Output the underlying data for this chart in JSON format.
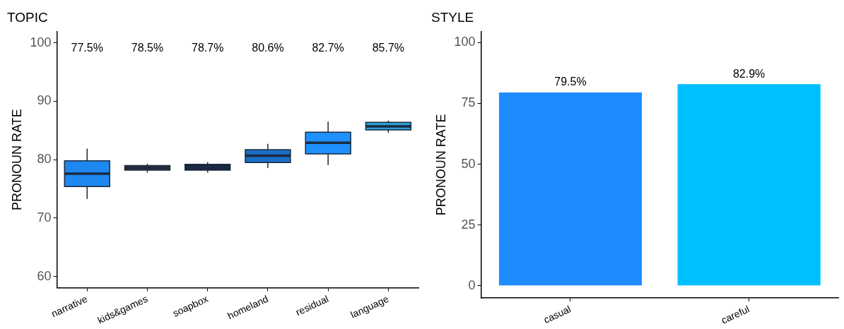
{
  "chart_data": [
    {
      "type": "box",
      "title": "TOPIC",
      "ylabel": "PRONOUN RATE",
      "categories": [
        "narrative",
        "kids&games",
        "soapbox",
        "homeland",
        "residual",
        "language"
      ],
      "boxes": [
        {
          "low": 73.3,
          "q1": 75.4,
          "median": 77.6,
          "q3": 79.8,
          "high": 81.9
        },
        {
          "low": 77.8,
          "q1": 78.2,
          "median": 78.6,
          "q3": 79.0,
          "high": 79.3
        },
        {
          "low": 77.8,
          "q1": 78.2,
          "median": 78.7,
          "q3": 79.2,
          "high": 79.6
        },
        {
          "low": 78.6,
          "q1": 79.5,
          "median": 80.7,
          "q3": 81.7,
          "high": 82.7
        },
        {
          "low": 79.1,
          "q1": 81.0,
          "median": 82.9,
          "q3": 84.7,
          "high": 86.5
        },
        {
          "low": 84.6,
          "q1": 85.1,
          "median": 85.7,
          "q3": 86.4,
          "high": 86.7
        }
      ],
      "colors": [
        "#1e88f0",
        "#333333",
        "#1f2240",
        "#1a6fc4",
        "#1e90ff",
        "#2a9fd6"
      ],
      "value_labels": [
        "77.5%",
        "78.5%",
        "78.7%",
        "80.6%",
        "82.7%",
        "85.7%"
      ],
      "ylim": [
        58.1,
        101.9
      ],
      "yticks": [
        60,
        70,
        80,
        90,
        100
      ],
      "grid": false,
      "legend": false
    },
    {
      "type": "bar",
      "title": "STYLE",
      "ylabel": "PRONOUN RATE",
      "categories": [
        "casual",
        "careful"
      ],
      "values": [
        79.5,
        82.9
      ],
      "colors": [
        "#1e8cff",
        "#00bfff"
      ],
      "value_labels": [
        "79.5%",
        "82.9%"
      ],
      "ylim": [
        -5,
        104.5
      ],
      "yticks": [
        0,
        25,
        50,
        75,
        100
      ],
      "grid": false,
      "legend": false
    }
  ]
}
